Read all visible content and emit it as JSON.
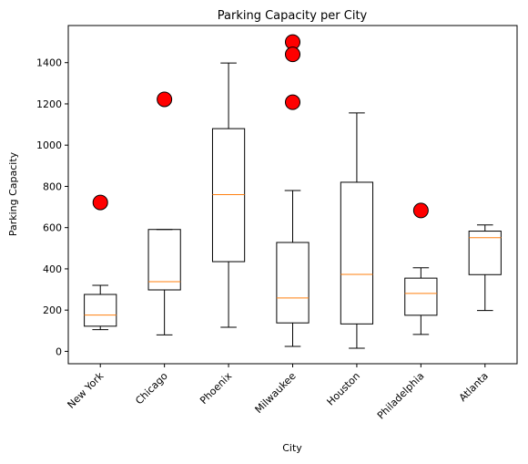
{
  "chart_data": {
    "type": "box",
    "title": "Parking Capacity per City",
    "xlabel": "City",
    "ylabel": "Parking Capacity",
    "ylim": [
      -60,
      1580
    ],
    "yticks": [
      0,
      200,
      400,
      600,
      800,
      1000,
      1200,
      1400
    ],
    "xtick_rotation": 45,
    "grid": false,
    "colors": {
      "box": "#000000",
      "median": "#ff7f0e",
      "outlier_fill": "#ff0000",
      "outlier_edge": "#000000"
    },
    "categories": [
      "New York",
      "Chicago",
      "Phoenix",
      "Milwaukee",
      "Houston",
      "Philadelphia",
      "Atlanta"
    ],
    "boxes": [
      {
        "whisker_low": 105,
        "q1": 122,
        "median": 176,
        "q3": 276,
        "whisker_high": 320,
        "outliers": [
          722
        ]
      },
      {
        "whisker_low": 80,
        "q1": 298,
        "median": 338,
        "q3": 591,
        "whisker_high": 591,
        "outliers": [
          1222
        ]
      },
      {
        "whisker_low": 117,
        "q1": 435,
        "median": 760,
        "q3": 1080,
        "whisker_high": 1398,
        "outliers": []
      },
      {
        "whisker_low": 24,
        "q1": 138,
        "median": 259,
        "q3": 528,
        "whisker_high": 780,
        "outliers": [
          1500,
          1440,
          1208
        ]
      },
      {
        "whisker_low": 15,
        "q1": 133,
        "median": 373,
        "q3": 820,
        "whisker_high": 1156,
        "outliers": []
      },
      {
        "whisker_low": 82,
        "q1": 175,
        "median": 281,
        "q3": 355,
        "whisker_high": 405,
        "outliers": [
          683
        ]
      },
      {
        "whisker_low": 198,
        "q1": 372,
        "median": 551,
        "q3": 583,
        "whisker_high": 613,
        "outliers": []
      }
    ]
  }
}
